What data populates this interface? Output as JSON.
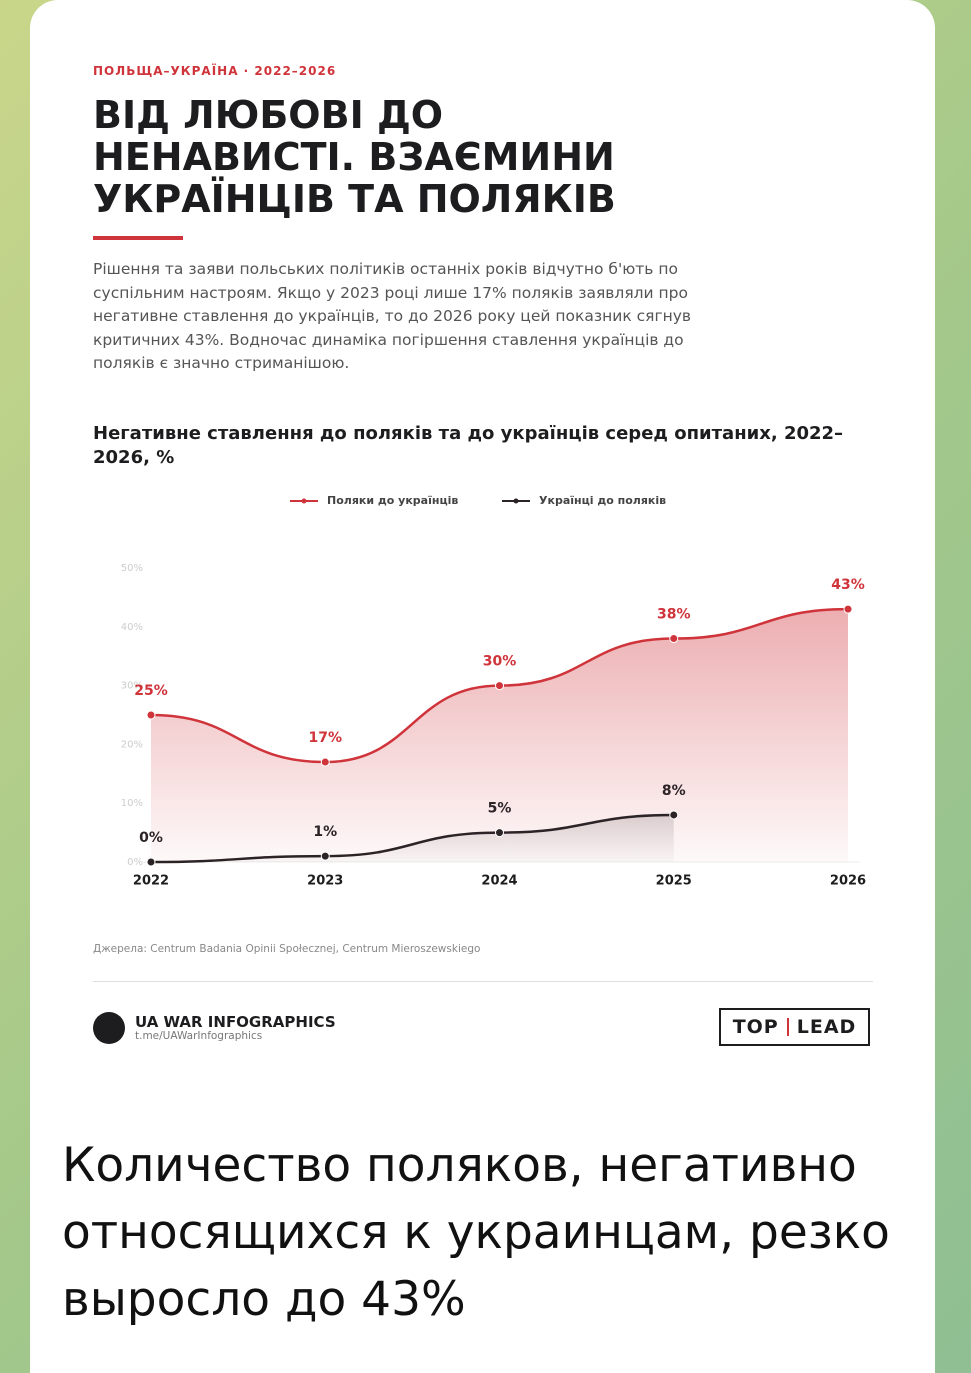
{
  "header": {
    "kicker": "ПОЛЬЩА–УКРАЇНА · 2022–2026",
    "title": "ВІД ЛЮБОВІ ДО НЕНАВИСТІ. ВЗАЄМИНИ УКРАЇНЦІВ ТА ПОЛЯКІВ",
    "lead": "Рішення та заяви польських політиків останніх років відчутно б'ють по суспільним настроям. Якщо у 2023 році лише 17% поляків заявляли про негативне ставлення до українців, то до 2026 року цей показник сягнув критичних 43%. Водночас динаміка погіршення ставлення українців до поляків є значно стриманішою."
  },
  "chart_data": {
    "type": "line",
    "title": "Негативне ставлення до поляків та до українців серед опитаних, 2022–2026, %",
    "categories": [
      "2022",
      "2023",
      "2024",
      "2025",
      "2026"
    ],
    "series": [
      {
        "name": "Поляки до українців",
        "color": "#d0343b",
        "values": [
          25,
          17,
          30,
          38,
          43
        ],
        "value_labels": [
          "25%",
          "17%",
          "30%",
          "38%",
          "43%"
        ]
      },
      {
        "name": "Українці до поляків",
        "color": "#2b2326",
        "values": [
          0,
          1,
          5,
          8,
          null
        ],
        "value_labels": [
          "0%",
          "1%",
          "5%",
          "8%",
          null
        ]
      }
    ],
    "ylim": [
      0,
      50
    ],
    "yticks": [
      {
        "value": 0,
        "label": "0%"
      },
      {
        "value": 10,
        "label": "10%"
      },
      {
        "value": 20,
        "label": "20%"
      },
      {
        "value": 30,
        "label": "30%"
      },
      {
        "value": 40,
        "label": "40%"
      },
      {
        "value": 50,
        "label": "50%"
      }
    ],
    "legend": "top",
    "grid": false,
    "source": "Джерела: Centrum Badania Opinii Społecznej, Centrum Mieroszewskiego"
  },
  "footer": {
    "brand": "UA WAR INFOGRAPHICS",
    "link": "t.me/UAWarInfographics",
    "partner_left": "TOP",
    "partner_right": "LEAD"
  },
  "message": {
    "text": "Количество поляков, негативно относящихся к украинцам, резко выросло до 43%"
  }
}
